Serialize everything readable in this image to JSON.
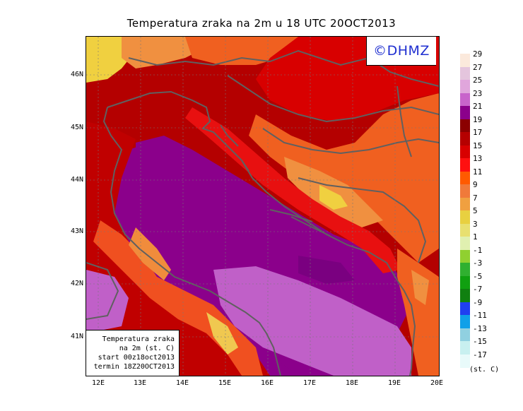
{
  "title": "Temperatura zraka na 2m u 18 UTC 20OCT2013",
  "logo": "©DHMZ",
  "info": {
    "line1": "Temperatura zraka",
    "line2": "na 2m (st. C)",
    "line3": "start 00z18oct2013",
    "line4": "termin 18Z20OCT2013"
  },
  "lat_labels": [
    "46N",
    "45N",
    "44N",
    "43N",
    "42N",
    "41N"
  ],
  "lon_labels": [
    "12E",
    "13E",
    "14E",
    "15E",
    "16E",
    "17E",
    "18E",
    "19E",
    "20E"
  ],
  "legend": {
    "unit": "(st. C)",
    "labels": [
      "29",
      "27",
      "25",
      "23",
      "21",
      "19",
      "17",
      "15",
      "13",
      "11",
      "9",
      "7",
      "5",
      "3",
      "1",
      "-1",
      "-3",
      "-5",
      "-7",
      "-9",
      "-11",
      "-13",
      "-15",
      "-17"
    ],
    "colors": [
      "#fbe9dc",
      "#e4c5dd",
      "#e0a6dc",
      "#c864cb",
      "#8b008b",
      "#8b0000",
      "#b50000",
      "#d80000",
      "#ff1010",
      "#ff5a00",
      "#f07a3a",
      "#f0a040",
      "#e8d040",
      "#e8e070",
      "#e0f0b0",
      "#90d030",
      "#30b030",
      "#10a010",
      "#108010",
      "#2040f0",
      "#10a0e8",
      "#90d0e0",
      "#c8f0f0",
      "#e8fafa"
    ]
  },
  "map_colors": {
    "sea": "#8b008b",
    "sea_south": "#c060c8",
    "coast_red": "#c80000",
    "inland_red": "#e81010",
    "orange": "#f06020",
    "light_orange": "#f09040",
    "yellow": "#f0d040",
    "dark_red": "#a00000",
    "border_line": "#606060"
  }
}
